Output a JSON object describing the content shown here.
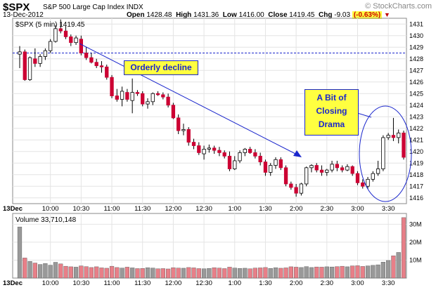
{
  "header": {
    "symbol": "$SPX",
    "name": "S&P 500 Large Cap Index",
    "exchange": "INDX",
    "date": "13-Dec-2012",
    "open_label": "Open",
    "open": "1428.48",
    "high_label": "High",
    "high": "1431.36",
    "low_label": "Low",
    "low": "1416.00",
    "close_label": "Close",
    "close": "1419.45",
    "chg_label": "Chg",
    "chg": "-9.03",
    "chg_pct": "(-0.63%)",
    "brand": "© StockCharts.com"
  },
  "price_legend": "$SPX (5 min) 1419.45",
  "volume_legend": "Volume 33,710,148",
  "annotations": {
    "orderly": "Orderly decline",
    "closing_line1": "A Bit of",
    "closing_line2": "Closing",
    "closing_line3": "Drama"
  },
  "colors": {
    "up": "#ffffff",
    "down": "#cc0033",
    "vol_down": "#e87f88",
    "vol_up": "#999999",
    "annotation_blue": "#1a26cc",
    "prev_close_line": "#1a26cc"
  },
  "chart_data": [
    {
      "type": "candlestick",
      "title": "$SPX (5 min)",
      "ylim": [
        1415.5,
        1431.5
      ],
      "yticks": [
        1416,
        1417,
        1418,
        1419,
        1420,
        1421,
        1422,
        1423,
        1424,
        1425,
        1426,
        1427,
        1428,
        1429,
        1430,
        1431
      ],
      "previous_close": 1428.5,
      "x_tick_labels": [
        "13Dec",
        "10:00",
        "10:30",
        "11:00",
        "11:30",
        "12:00",
        "12:30",
        "1:00",
        "1:30",
        "2:00",
        "2:30",
        "3:00",
        "3:30"
      ],
      "candles": [
        {
          "o": 1428.4,
          "h": 1429.1,
          "l": 1427.2,
          "c": 1428.6
        },
        {
          "o": 1428.6,
          "h": 1428.8,
          "l": 1426.1,
          "c": 1426.2
        },
        {
          "o": 1426.2,
          "h": 1428.2,
          "l": 1426.1,
          "c": 1428.1
        },
        {
          "o": 1428.0,
          "h": 1428.9,
          "l": 1427.3,
          "c": 1427.6
        },
        {
          "o": 1427.6,
          "h": 1428.4,
          "l": 1427.3,
          "c": 1428.2
        },
        {
          "o": 1428.2,
          "h": 1428.9,
          "l": 1427.9,
          "c": 1428.7
        },
        {
          "o": 1428.7,
          "h": 1429.7,
          "l": 1428.5,
          "c": 1429.5
        },
        {
          "o": 1429.5,
          "h": 1430.9,
          "l": 1429.4,
          "c": 1430.6
        },
        {
          "o": 1430.6,
          "h": 1431.4,
          "l": 1430.2,
          "c": 1430.4
        },
        {
          "o": 1430.4,
          "h": 1430.8,
          "l": 1429.7,
          "c": 1429.9
        },
        {
          "o": 1429.9,
          "h": 1430.1,
          "l": 1429.1,
          "c": 1429.4
        },
        {
          "o": 1429.4,
          "h": 1430.0,
          "l": 1429.2,
          "c": 1429.8
        },
        {
          "o": 1429.7,
          "h": 1430.0,
          "l": 1428.3,
          "c": 1428.5
        },
        {
          "o": 1428.5,
          "h": 1429.0,
          "l": 1427.9,
          "c": 1428.1
        },
        {
          "o": 1428.1,
          "h": 1428.5,
          "l": 1427.6,
          "c": 1427.7
        },
        {
          "o": 1427.7,
          "h": 1428.0,
          "l": 1427.2,
          "c": 1427.4
        },
        {
          "o": 1427.4,
          "h": 1427.8,
          "l": 1426.8,
          "c": 1427.3
        },
        {
          "o": 1427.3,
          "h": 1427.5,
          "l": 1426.2,
          "c": 1426.4
        },
        {
          "o": 1426.4,
          "h": 1426.6,
          "l": 1424.6,
          "c": 1424.8
        },
        {
          "o": 1424.8,
          "h": 1425.4,
          "l": 1424.3,
          "c": 1424.5
        },
        {
          "o": 1424.5,
          "h": 1425.6,
          "l": 1423.9,
          "c": 1425.2
        },
        {
          "o": 1425.1,
          "h": 1425.4,
          "l": 1424.3,
          "c": 1424.5
        },
        {
          "o": 1424.4,
          "h": 1426.3,
          "l": 1423.3,
          "c": 1425.1
        },
        {
          "o": 1425.1,
          "h": 1425.3,
          "l": 1424.8,
          "c": 1425.0
        },
        {
          "o": 1425.0,
          "h": 1425.2,
          "l": 1423.9,
          "c": 1424.1
        },
        {
          "o": 1424.1,
          "h": 1424.6,
          "l": 1423.7,
          "c": 1424.3
        },
        {
          "o": 1424.3,
          "h": 1425.1,
          "l": 1424.0,
          "c": 1425.0
        },
        {
          "o": 1425.0,
          "h": 1425.2,
          "l": 1424.8,
          "c": 1424.9
        },
        {
          "o": 1424.9,
          "h": 1425.1,
          "l": 1424.5,
          "c": 1424.7
        },
        {
          "o": 1424.7,
          "h": 1425.0,
          "l": 1423.8,
          "c": 1424.0
        },
        {
          "o": 1424.0,
          "h": 1424.2,
          "l": 1422.8,
          "c": 1422.9
        },
        {
          "o": 1422.9,
          "h": 1423.2,
          "l": 1421.5,
          "c": 1421.8
        },
        {
          "o": 1421.8,
          "h": 1422.4,
          "l": 1421.4,
          "c": 1421.9
        },
        {
          "o": 1421.9,
          "h": 1422.1,
          "l": 1420.5,
          "c": 1420.8
        },
        {
          "o": 1420.8,
          "h": 1421.1,
          "l": 1420.2,
          "c": 1420.5
        },
        {
          "o": 1420.5,
          "h": 1420.8,
          "l": 1419.7,
          "c": 1419.9
        },
        {
          "o": 1419.8,
          "h": 1420.5,
          "l": 1419.3,
          "c": 1420.2
        },
        {
          "o": 1420.2,
          "h": 1420.6,
          "l": 1419.9,
          "c": 1420.3
        },
        {
          "o": 1420.3,
          "h": 1420.5,
          "l": 1419.8,
          "c": 1420.1
        },
        {
          "o": 1420.1,
          "h": 1420.4,
          "l": 1419.6,
          "c": 1419.9
        },
        {
          "o": 1419.9,
          "h": 1420.1,
          "l": 1419.4,
          "c": 1419.6
        },
        {
          "o": 1419.6,
          "h": 1420.0,
          "l": 1418.3,
          "c": 1418.5
        },
        {
          "o": 1418.5,
          "h": 1419.6,
          "l": 1418.4,
          "c": 1419.2
        },
        {
          "o": 1419.2,
          "h": 1420.1,
          "l": 1419.0,
          "c": 1419.9
        },
        {
          "o": 1419.9,
          "h": 1420.3,
          "l": 1419.6,
          "c": 1420.2
        },
        {
          "o": 1420.2,
          "h": 1420.4,
          "l": 1419.8,
          "c": 1419.9
        },
        {
          "o": 1419.9,
          "h": 1420.2,
          "l": 1419.4,
          "c": 1419.6
        },
        {
          "o": 1419.6,
          "h": 1419.9,
          "l": 1418.8,
          "c": 1419.1
        },
        {
          "o": 1419.1,
          "h": 1419.3,
          "l": 1417.9,
          "c": 1418.2
        },
        {
          "o": 1418.2,
          "h": 1419.0,
          "l": 1417.9,
          "c": 1418.8
        },
        {
          "o": 1418.8,
          "h": 1419.5,
          "l": 1418.5,
          "c": 1419.3
        },
        {
          "o": 1419.3,
          "h": 1419.5,
          "l": 1418.4,
          "c": 1418.6
        },
        {
          "o": 1418.6,
          "h": 1418.8,
          "l": 1417.0,
          "c": 1417.2
        },
        {
          "o": 1417.2,
          "h": 1417.4,
          "l": 1416.7,
          "c": 1416.9
        },
        {
          "o": 1416.9,
          "h": 1417.2,
          "l": 1416.1,
          "c": 1416.4
        },
        {
          "o": 1416.4,
          "h": 1417.3,
          "l": 1416.2,
          "c": 1417.2
        },
        {
          "o": 1417.2,
          "h": 1418.7,
          "l": 1417.0,
          "c": 1418.6
        },
        {
          "o": 1418.6,
          "h": 1418.9,
          "l": 1418.2,
          "c": 1418.8
        },
        {
          "o": 1418.8,
          "h": 1419.0,
          "l": 1418.2,
          "c": 1418.4
        },
        {
          "o": 1418.4,
          "h": 1418.8,
          "l": 1417.9,
          "c": 1418.2
        },
        {
          "o": 1418.2,
          "h": 1418.5,
          "l": 1417.9,
          "c": 1418.4
        },
        {
          "o": 1418.4,
          "h": 1419.2,
          "l": 1418.2,
          "c": 1418.9
        },
        {
          "o": 1418.9,
          "h": 1419.2,
          "l": 1418.3,
          "c": 1418.6
        },
        {
          "o": 1418.6,
          "h": 1418.8,
          "l": 1418.2,
          "c": 1418.4
        },
        {
          "o": 1418.4,
          "h": 1418.9,
          "l": 1418.3,
          "c": 1418.7
        },
        {
          "o": 1418.7,
          "h": 1418.8,
          "l": 1417.9,
          "c": 1418.1
        },
        {
          "o": 1418.1,
          "h": 1418.3,
          "l": 1417.1,
          "c": 1417.3
        },
        {
          "o": 1417.3,
          "h": 1417.6,
          "l": 1416.8,
          "c": 1417.0
        },
        {
          "o": 1417.0,
          "h": 1417.8,
          "l": 1416.8,
          "c": 1417.6
        },
        {
          "o": 1417.6,
          "h": 1418.3,
          "l": 1417.4,
          "c": 1418.1
        },
        {
          "o": 1418.1,
          "h": 1419.2,
          "l": 1417.9,
          "c": 1418.5
        },
        {
          "o": 1418.5,
          "h": 1421.4,
          "l": 1418.3,
          "c": 1421.2
        },
        {
          "o": 1421.2,
          "h": 1421.6,
          "l": 1421.0,
          "c": 1421.4
        },
        {
          "o": 1421.4,
          "h": 1422.9,
          "l": 1420.9,
          "c": 1421.2
        },
        {
          "o": 1421.2,
          "h": 1421.9,
          "l": 1420.7,
          "c": 1421.6
        },
        {
          "o": 1421.6,
          "h": 1421.8,
          "l": 1419.3,
          "c": 1419.5
        }
      ]
    },
    {
      "type": "bar",
      "title": "Volume",
      "ylim": [
        0,
        36
      ],
      "yticks": [
        10,
        20,
        30
      ],
      "ytick_labels": [
        "10M",
        "20M",
        "30M"
      ],
      "unit": "millions of shares",
      "values": [
        28.5,
        11.2,
        9.3,
        8.4,
        7.6,
        8.1,
        7.2,
        8.8,
        7.9,
        6.6,
        6.3,
        6.1,
        6.8,
        6.4,
        5.9,
        6.3,
        5.7,
        5.5,
        6.6,
        5.9,
        5.6,
        6.1,
        5.7,
        5.3,
        5.4,
        5.8,
        5.6,
        5.2,
        5.3,
        5.1,
        5.8,
        5.6,
        5.5,
        5.9,
        5.7,
        5.3,
        5.2,
        5.4,
        5.8,
        5.6,
        5.3,
        6.1,
        5.6,
        5.4,
        5.5,
        5.2,
        5.6,
        5.7,
        5.9,
        5.4,
        5.8,
        5.5,
        5.7,
        6.3,
        6.1,
        5.9,
        6.4,
        5.9,
        6.2,
        6.1,
        6.3,
        6.2,
        6.4,
        6.6,
        6.3,
        6.8,
        6.9,
        6.5,
        6.8,
        7.1,
        7.4,
        8.9,
        9.8,
        12.4,
        14.3,
        33.7
      ]
    }
  ]
}
